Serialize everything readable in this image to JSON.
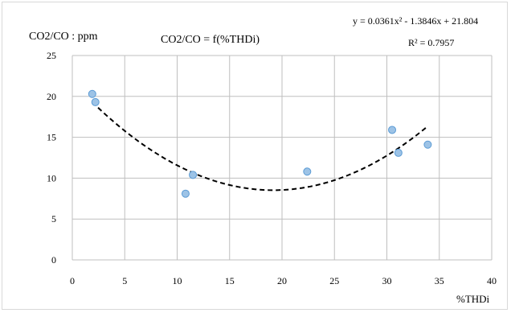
{
  "chart_data": {
    "type": "scatter",
    "title": "CO2/CO = f(%THDi)",
    "ylabel": "CO2/CO : ppm",
    "xlabel": "%THDi",
    "xlim": [
      0,
      40
    ],
    "ylim": [
      0,
      25
    ],
    "xticks": [
      0,
      5,
      10,
      15,
      20,
      25,
      30,
      35,
      40
    ],
    "yticks": [
      0,
      5,
      10,
      15,
      20,
      25
    ],
    "grid": true,
    "points": [
      {
        "x": 1.9,
        "y": 20.3
      },
      {
        "x": 2.2,
        "y": 19.3
      },
      {
        "x": 10.8,
        "y": 8.1
      },
      {
        "x": 11.5,
        "y": 10.4
      },
      {
        "x": 22.4,
        "y": 10.8
      },
      {
        "x": 30.5,
        "y": 15.9
      },
      {
        "x": 31.1,
        "y": 13.1
      },
      {
        "x": 33.9,
        "y": 14.1
      }
    ],
    "trendline": {
      "type": "polynomial",
      "coefficients": [
        0.0361,
        -1.3846,
        21.804
      ],
      "x_range": [
        1.9,
        33.9
      ],
      "equation_label": "y = 0.0361x² - 1.3846x + 21.804",
      "r2_label": "R² = 0.7957"
    },
    "colors": {
      "marker_fill": "#9dc3e6",
      "marker_stroke": "#5b9bd5",
      "grid": "#bfbfbf",
      "trendline": "#000000"
    }
  }
}
